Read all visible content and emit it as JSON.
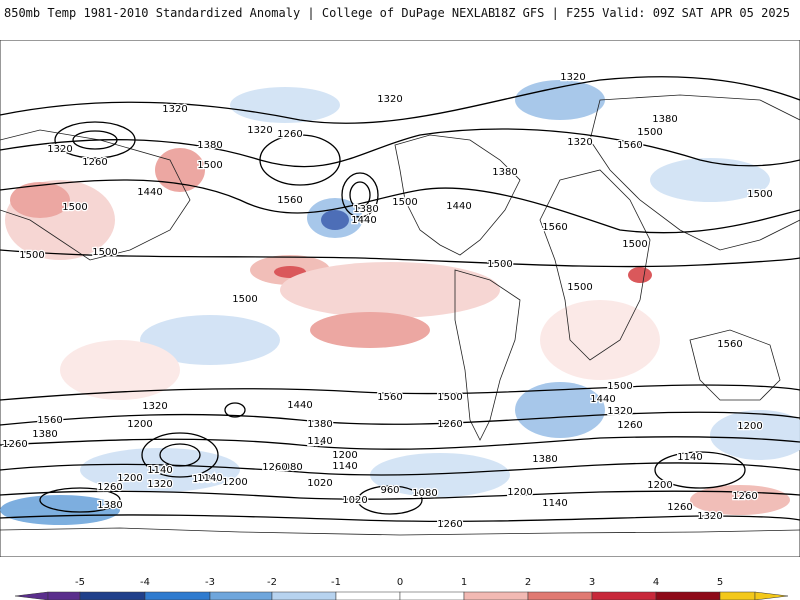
{
  "header": {
    "left": "850mb Temp 1981-2010 Standardized Anomaly | College of DuPage NEXLAB",
    "right": "18Z GFS | F255 Valid: 09Z SAT APR 05 2025"
  },
  "colorbar": {
    "ticks": [
      "-5",
      "-4",
      "-3",
      "-2",
      "-1",
      "0",
      "1",
      "2",
      "3",
      "4",
      "5"
    ],
    "colors": [
      "#5a2e8c",
      "#1f3f8a",
      "#2f7bcf",
      "#6fa6dc",
      "#b7d3ef",
      "#ffffff",
      "#ffffff",
      "#f2b9b3",
      "#e07a72",
      "#c8283a",
      "#8e0a18",
      "#f3c81a"
    ]
  },
  "contour_labels": [
    {
      "text": "1320"
    },
    {
      "text": "1320"
    },
    {
      "text": "1320"
    },
    {
      "text": "1260"
    },
    {
      "text": "1320"
    },
    {
      "text": "1260"
    },
    {
      "text": "1320"
    },
    {
      "text": "1380"
    },
    {
      "text": "1500"
    },
    {
      "text": "1440"
    },
    {
      "text": "1500"
    },
    {
      "text": "1500"
    },
    {
      "text": "1560"
    },
    {
      "text": "1380"
    },
    {
      "text": "1440"
    },
    {
      "text": "1500"
    },
    {
      "text": "1380"
    },
    {
      "text": "1440"
    },
    {
      "text": "1560"
    },
    {
      "text": "1500"
    },
    {
      "text": "1500"
    },
    {
      "text": "1500"
    },
    {
      "text": "1500"
    },
    {
      "text": "1500"
    },
    {
      "text": "1320"
    },
    {
      "text": "1380"
    },
    {
      "text": "1500"
    },
    {
      "text": "1560"
    },
    {
      "text": "1500"
    },
    {
      "text": "1560"
    },
    {
      "text": "1500"
    },
    {
      "text": "1440"
    },
    {
      "text": "1320"
    },
    {
      "text": "1260"
    },
    {
      "text": "1500"
    },
    {
      "text": "1560"
    },
    {
      "text": "1380"
    },
    {
      "text": "1440"
    },
    {
      "text": "1320"
    },
    {
      "text": "1200"
    },
    {
      "text": "1560"
    },
    {
      "text": "1260"
    },
    {
      "text": "1380"
    },
    {
      "text": "1320"
    },
    {
      "text": "1260"
    },
    {
      "text": "1200"
    },
    {
      "text": "1140"
    },
    {
      "text": "1080"
    },
    {
      "text": "1020"
    },
    {
      "text": "1200"
    },
    {
      "text": "1260"
    },
    {
      "text": "1140"
    },
    {
      "text": "1080"
    },
    {
      "text": "1200"
    },
    {
      "text": "1260"
    },
    {
      "text": "1320"
    },
    {
      "text": "1140"
    },
    {
      "text": "1020"
    },
    {
      "text": "960"
    },
    {
      "text": "1080"
    },
    {
      "text": "1200"
    },
    {
      "text": "1140"
    },
    {
      "text": "1380"
    },
    {
      "text": "1200"
    },
    {
      "text": "1140"
    },
    {
      "text": "1260"
    },
    {
      "text": "1320"
    },
    {
      "text": "1200"
    },
    {
      "text": "1260"
    },
    {
      "text": "1380"
    },
    {
      "text": "1260"
    },
    {
      "text": "1200"
    },
    {
      "text": "1260"
    },
    {
      "text": "1140"
    }
  ]
}
